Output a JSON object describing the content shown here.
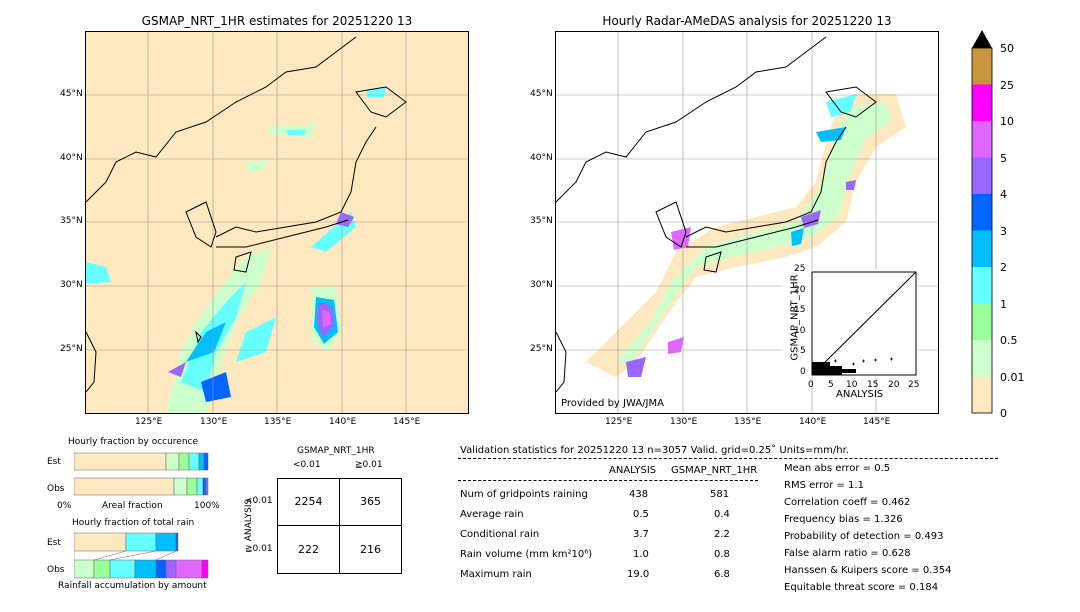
{
  "left_map": {
    "title": "GSMAP_NRT_1HR estimates for 20251220 13",
    "lat_labels": [
      "45°N",
      "40°N",
      "35°N",
      "30°N",
      "25°N"
    ],
    "lon_labels": [
      "125°E",
      "130°E",
      "135°E",
      "140°E",
      "145°E"
    ]
  },
  "right_map": {
    "title": "Hourly Radar-AMeDAS analysis for 20251220 13",
    "lat_labels": [
      "45°N",
      "40°N",
      "35°N",
      "30°N",
      "25°N"
    ],
    "lon_labels": [
      "125°E",
      "130°E",
      "135°E",
      "140°E",
      "145°E"
    ],
    "credit": "Provided by JWA/JMA"
  },
  "colorbar": {
    "levels": [
      "50",
      "25",
      "10",
      "5",
      "4",
      "3",
      "2",
      "1",
      "0.5",
      "0.01",
      "0"
    ],
    "colors": [
      "#c8963c",
      "#ff00ff",
      "#e066ff",
      "#9966ff",
      "#0066ff",
      "#00bfff",
      "#66ffff",
      "#99ff99",
      "#ccffcc",
      "#fde8c0"
    ]
  },
  "scatter": {
    "xlabel": "ANALYSIS",
    "ylabel": "GSMAP_NRT_1HR",
    "ticks": [
      "0",
      "5",
      "10",
      "15",
      "20",
      "25"
    ]
  },
  "occurrence": {
    "title": "Hourly fraction by occurence",
    "row_est": "Est",
    "row_obs": "Obs",
    "axis_left": "0%",
    "axis_mid": "Areal fraction",
    "axis_right": "100%"
  },
  "total_rain": {
    "title": "Hourly fraction of total rain",
    "row_est": "Est",
    "row_obs": "Obs",
    "axis_label": "Rainfall accumulation by amount"
  },
  "contingency": {
    "title": "GSMAP_NRT_1HR",
    "col_lt": "<0.01",
    "col_ge": "≧0.01",
    "row_axis": "ANALYSIS",
    "row_lt": "<0.01",
    "row_ge": "≧0.01",
    "values": [
      "2254",
      "365",
      "222",
      "216"
    ]
  },
  "validation": {
    "header": "Validation statistics for 20251220 13  n=3057 Valid. grid=0.25˚ Units=mm/hr.",
    "col_analysis": "ANALYSIS",
    "col_gsmap": "GSMAP_NRT_1HR",
    "rows": [
      {
        "label": "Num of gridpoints raining",
        "analysis": "438",
        "gsmap": "581"
      },
      {
        "label": "Average rain",
        "analysis": "0.5",
        "gsmap": "0.4"
      },
      {
        "label": "Conditional rain",
        "analysis": "3.7",
        "gsmap": "2.2"
      },
      {
        "label": "Rain volume (mm km²10⁶)",
        "analysis": "1.0",
        "gsmap": "0.8"
      },
      {
        "label": "Maximum rain",
        "analysis": "19.0",
        "gsmap": "6.8"
      }
    ],
    "scores": [
      "Mean abs error =    0.5",
      "RMS error =    1.1",
      "Correlation coeff =  0.462",
      "Frequency bias =  1.326",
      "Probability of detection =  0.493",
      "False alarm ratio =  0.628",
      "Hanssen & Kuipers score =  0.354",
      "Equitable threat score =  0.184"
    ]
  }
}
